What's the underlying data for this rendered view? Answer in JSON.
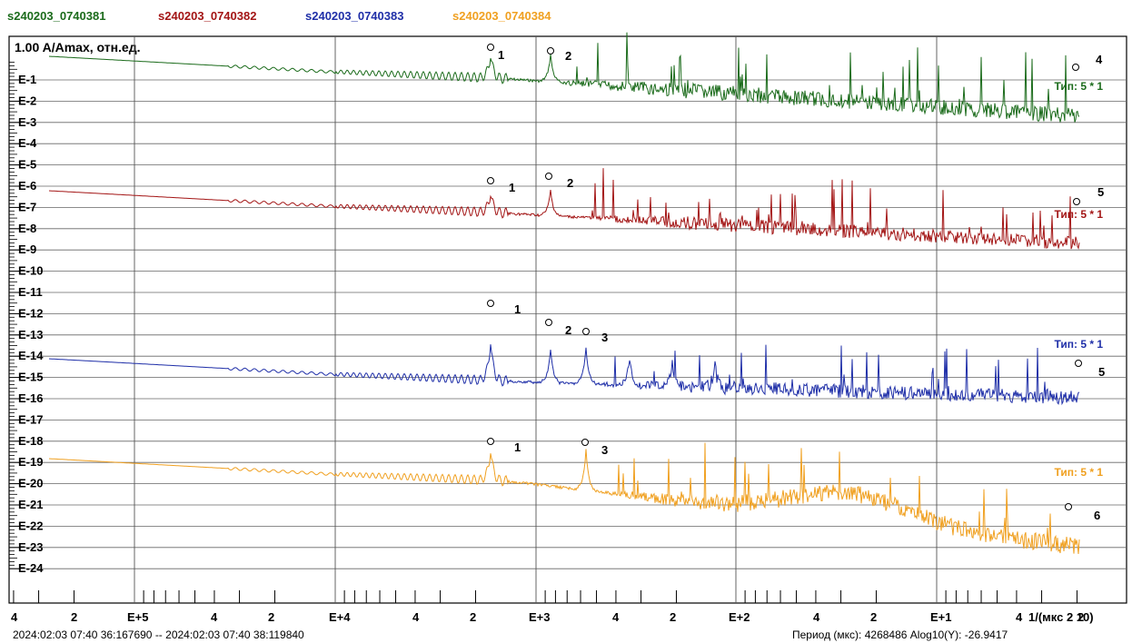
{
  "legend": [
    {
      "label": "s240203_0740381",
      "color": "#1b6b1b"
    },
    {
      "label": "s240203_0740382",
      "color": "#a31515"
    },
    {
      "label": "s240203_0740383",
      "color": "#1f2fa8"
    },
    {
      "label": "s240203_0740384",
      "color": "#f0a020"
    }
  ],
  "footer": {
    "time_range": "2024:02:03 07:40 36:167690 -- 2024:02:03 07:40 38:119840",
    "status": "Период (мкс): 4268486  Alog10(Y): -26.9417"
  },
  "chart_data": {
    "type": "line",
    "ylabel": "1.00  A/Amax, отн.ед.",
    "xlabel": "1/(мкс 2 10)",
    "y_ticks": [
      "E-1",
      "E-2",
      "E-3",
      "E-4",
      "E-5",
      "E-6",
      "E-7",
      "E-8",
      "E-9",
      "E-10",
      "E-11",
      "E-12",
      "E-13",
      "E-14",
      "E-15",
      "E-16",
      "E-17",
      "E-18",
      "E-19",
      "E-20",
      "E-21",
      "E-22",
      "E-23",
      "E-24"
    ],
    "x_ticks": [
      "4",
      "2",
      "E+5",
      "4",
      "2",
      "E+4",
      "4",
      "2",
      "E+3",
      "4",
      "2",
      "E+2",
      "4",
      "2",
      "E+1",
      "4",
      "2"
    ],
    "x_decades": [
      "E+5",
      "E+4",
      "E+3",
      "E+2",
      "E+1"
    ],
    "grid": true,
    "series": [
      {
        "name": "s240203_0740381",
        "color": "#1b6b1b",
        "offset_label": "Тип: 5 * 1",
        "peaks": [
          {
            "label": "1"
          },
          {
            "label": "2"
          },
          {
            "label": "4"
          }
        ]
      },
      {
        "name": "s240203_0740382",
        "color": "#a31515",
        "offset_label": "Тип: 5 * 1",
        "peaks": [
          {
            "label": "1"
          },
          {
            "label": "2"
          },
          {
            "label": "5"
          }
        ]
      },
      {
        "name": "s240203_0740383",
        "color": "#1f2fa8",
        "offset_label": "Тип: 5 * 1",
        "peaks": [
          {
            "label": "1"
          },
          {
            "label": "2"
          },
          {
            "label": "3"
          },
          {
            "label": "5"
          }
        ]
      },
      {
        "name": "s240203_0740384",
        "color": "#f0a020",
        "offset_label": "Тип: 5 * 1",
        "peaks": [
          {
            "label": "1"
          },
          {
            "label": "3"
          },
          {
            "label": "6"
          }
        ]
      }
    ]
  }
}
